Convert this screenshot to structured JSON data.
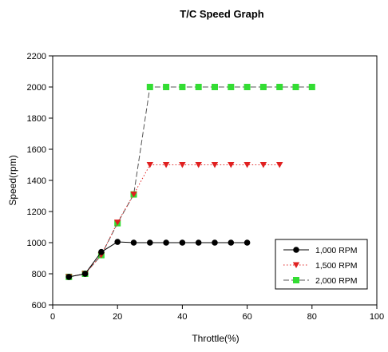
{
  "chart_data": {
    "type": "line",
    "title": "T/C Speed Graph",
    "xlabel": "Throttle(%)",
    "ylabel": "Speed(rpm)",
    "xlim": [
      0,
      100
    ],
    "ylim": [
      600,
      2200
    ],
    "xticks": [
      0,
      20,
      40,
      60,
      80,
      100
    ],
    "yticks": [
      600,
      800,
      1000,
      1200,
      1400,
      1600,
      1800,
      2000,
      2200
    ],
    "grid": false,
    "legend_position": "bottom-right",
    "series": [
      {
        "name": "1,000 RPM",
        "color": "#000000",
        "marker": "circle",
        "line_style": "solid",
        "x": [
          5,
          10,
          15,
          20,
          25,
          30,
          35,
          40,
          45,
          50,
          55,
          60
        ],
        "y": [
          780,
          800,
          940,
          1005,
          1000,
          1000,
          1000,
          1000,
          1000,
          1000,
          1000,
          1000
        ]
      },
      {
        "name": "1,500 RPM",
        "color": "#e02020",
        "marker": "triangle-down",
        "line_style": "dotted",
        "x": [
          5,
          10,
          15,
          20,
          25,
          30,
          35,
          40,
          45,
          50,
          55,
          60,
          65,
          70
        ],
        "y": [
          780,
          800,
          920,
          1130,
          1310,
          1500,
          1500,
          1500,
          1500,
          1500,
          1500,
          1500,
          1500,
          1500
        ]
      },
      {
        "name": "2,000 RPM",
        "color": "#33dd33",
        "marker": "square",
        "line_style": "dashed",
        "x": [
          5,
          10,
          15,
          20,
          25,
          30,
          35,
          40,
          45,
          50,
          55,
          60,
          65,
          70,
          75,
          80
        ],
        "y": [
          780,
          800,
          920,
          1125,
          1310,
          2000,
          2000,
          2000,
          2000,
          2000,
          2000,
          2000,
          2000,
          2000,
          2000,
          2000
        ]
      }
    ]
  }
}
